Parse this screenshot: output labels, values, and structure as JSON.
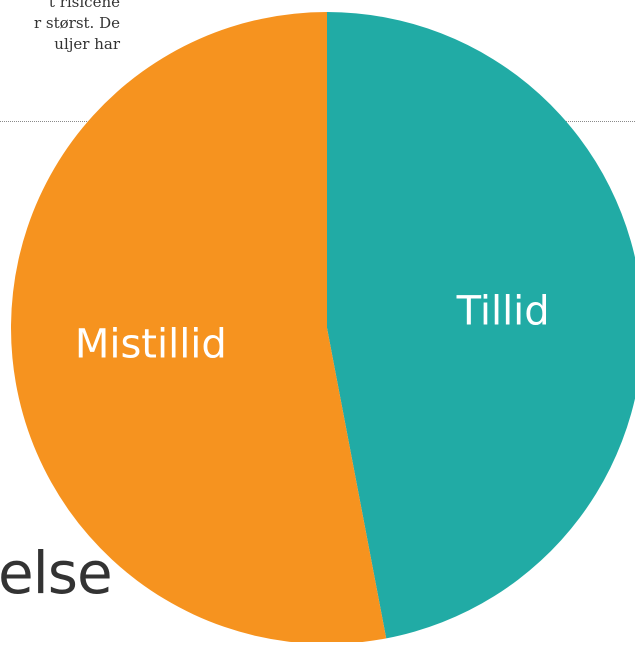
{
  "body_text": {
    "lines": [
      "t risicene",
      "r størst. De",
      "uljer har"
    ]
  },
  "heading_fragment": "else",
  "chart_data": {
    "type": "pie",
    "slices": [
      {
        "label": "Tillid",
        "value": 47,
        "color": "#21aba5"
      },
      {
        "label": "Mistillid",
        "value": 53,
        "color": "#f6931f"
      }
    ]
  }
}
